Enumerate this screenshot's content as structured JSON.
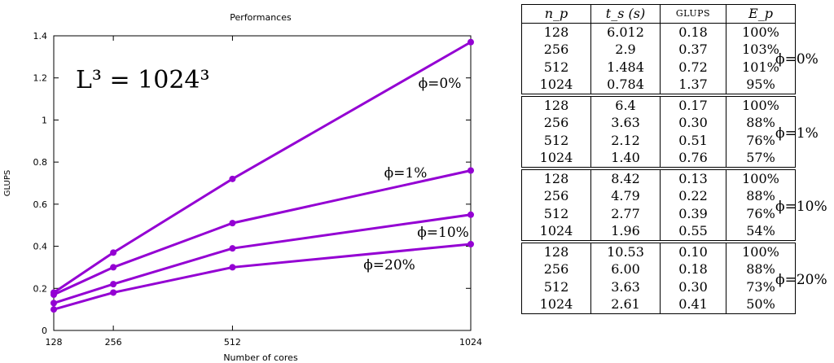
{
  "chart_data": {
    "type": "line",
    "title": "Performances",
    "xlabel": "Number of cores",
    "ylabel": "GLUPS",
    "annotation": "L³ = 1024³",
    "x": [
      128,
      256,
      512,
      1024
    ],
    "x_ticks": [
      "128",
      "256",
      "512",
      "1024"
    ],
    "y_ticks": [
      "0",
      "0.2",
      "0.4",
      "0.6",
      "0.8",
      "1",
      "1.2",
      "1.4"
    ],
    "ylim": [
      0,
      1.4
    ],
    "color": "#9400d3",
    "series": [
      {
        "name": "ϕ=0%",
        "values": [
          0.18,
          0.37,
          0.72,
          1.37
        ]
      },
      {
        "name": "ϕ=1%",
        "values": [
          0.17,
          0.3,
          0.51,
          0.76
        ]
      },
      {
        "name": "ϕ=10%",
        "values": [
          0.13,
          0.22,
          0.39,
          0.55
        ]
      },
      {
        "name": "ϕ=20%",
        "values": [
          0.1,
          0.18,
          0.3,
          0.41
        ]
      }
    ]
  },
  "table": {
    "headers": [
      "n_p",
      "t_s (s)",
      "GLUPS",
      "E_p"
    ],
    "groups": [
      {
        "label": "ϕ=0%",
        "rows": [
          [
            "128",
            "6.012",
            "0.18",
            "100%"
          ],
          [
            "256",
            "2.9",
            "0.37",
            "103%"
          ],
          [
            "512",
            "1.484",
            "0.72",
            "101%"
          ],
          [
            "1024",
            "0.784",
            "1.37",
            "95%"
          ]
        ]
      },
      {
        "label": "ϕ=1%",
        "rows": [
          [
            "128",
            "6.4",
            "0.17",
            "100%"
          ],
          [
            "256",
            "3.63",
            "0.30",
            "88%"
          ],
          [
            "512",
            "2.12",
            "0.51",
            "76%"
          ],
          [
            "1024",
            "1.40",
            "0.76",
            "57%"
          ]
        ]
      },
      {
        "label": "ϕ=10%",
        "rows": [
          [
            "128",
            "8.42",
            "0.13",
            "100%"
          ],
          [
            "256",
            "4.79",
            "0.22",
            "88%"
          ],
          [
            "512",
            "2.77",
            "0.39",
            "76%"
          ],
          [
            "1024",
            "1.96",
            "0.55",
            "54%"
          ]
        ]
      },
      {
        "label": "ϕ=20%",
        "rows": [
          [
            "128",
            "10.53",
            "0.10",
            "100%"
          ],
          [
            "256",
            "6.00",
            "0.18",
            "88%"
          ],
          [
            "512",
            "3.63",
            "0.30",
            "73%"
          ],
          [
            "1024",
            "2.61",
            "0.41",
            "50%"
          ]
        ]
      }
    ]
  }
}
